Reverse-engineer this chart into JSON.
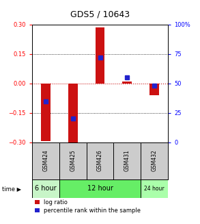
{
  "title": "GDS5 / 10643",
  "samples": [
    "GSM424",
    "GSM425",
    "GSM426",
    "GSM431",
    "GSM432"
  ],
  "log_ratios": [
    -0.295,
    -0.325,
    0.285,
    0.01,
    -0.06
  ],
  "percentile_ranks": [
    35,
    20,
    72,
    55,
    48
  ],
  "ylim_left": [
    -0.3,
    0.3
  ],
  "ylim_right": [
    0,
    100
  ],
  "yticks_left": [
    -0.3,
    -0.15,
    0,
    0.15,
    0.3
  ],
  "yticks_right": [
    0,
    25,
    50,
    75,
    100
  ],
  "time_groups": [
    {
      "label": "6 hour",
      "count": 1,
      "color": "#c8f5c8"
    },
    {
      "label": "12 hour",
      "count": 3,
      "color": "#66ee66"
    },
    {
      "label": "24 hour",
      "count": 1,
      "color": "#aaffaa"
    }
  ],
  "bar_color": "#cc1111",
  "dot_color": "#2222cc",
  "bar_width": 0.35,
  "dot_size": 4,
  "zero_line_color": "#cc1111",
  "sample_bg": "#cccccc",
  "title_fontsize": 9,
  "tick_fontsize": 6,
  "legend_fontsize": 6
}
